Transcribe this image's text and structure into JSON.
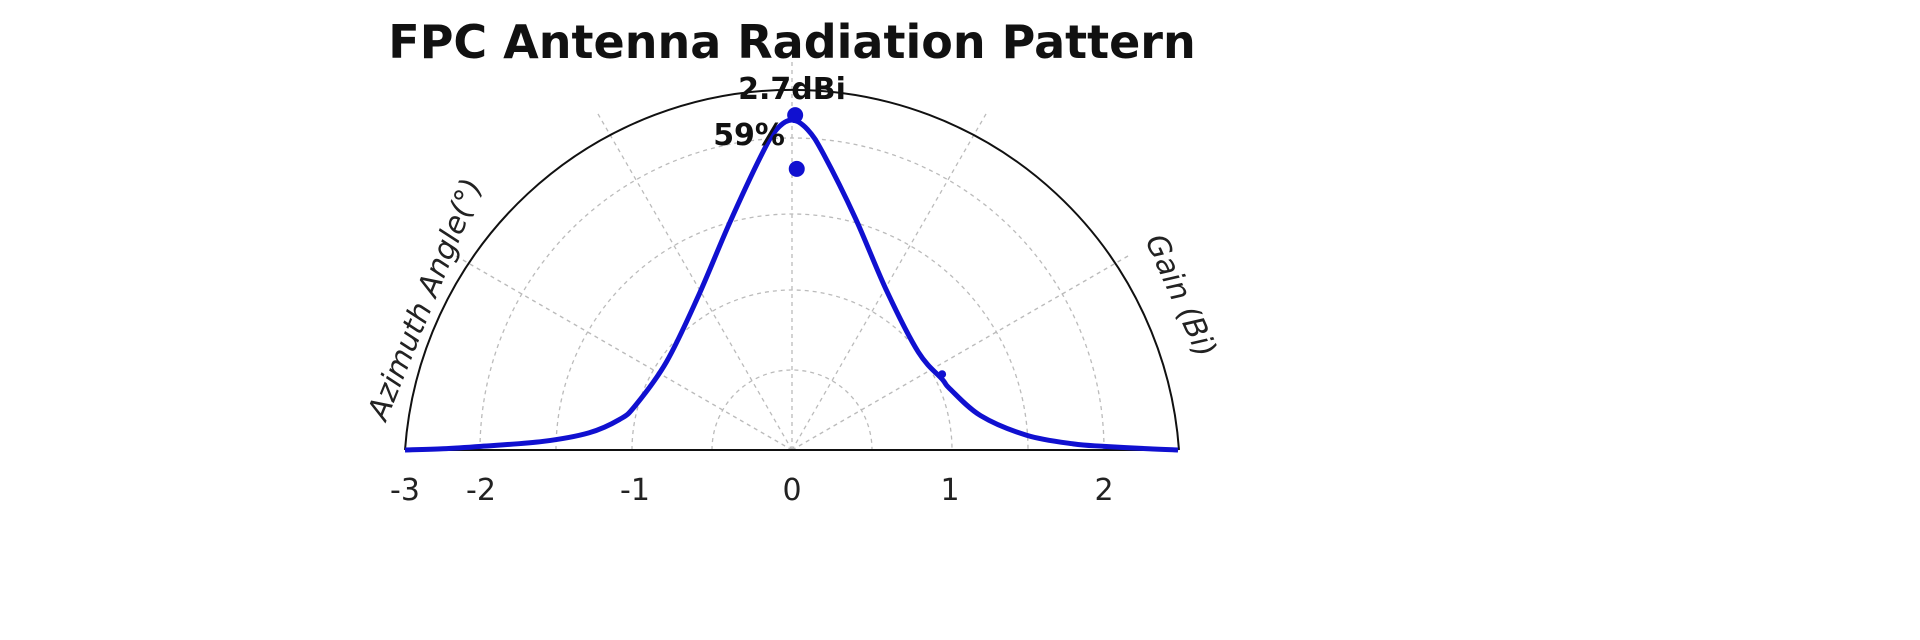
{
  "chart_data": {
    "type": "line",
    "title": "FPC Antenna Radiation Pattern",
    "left_label": "Azimuth Angle(°)",
    "right_label": "Gain (Bi)",
    "x_ticks": [
      "-3",
      "-2",
      "-1",
      "0",
      "1",
      "2"
    ],
    "xlim": [
      -3,
      2.5
    ],
    "polar_grid": true,
    "series_color": "#1010d0",
    "series": [
      {
        "x": [
          -3,
          -2.5,
          -2,
          -1.6,
          -1.3,
          -1.1,
          -1,
          -0.8,
          -0.6,
          -0.4,
          -0.2,
          -0.1,
          0,
          0.1,
          0.2,
          0.4,
          0.6,
          0.8,
          0.95,
          1,
          1.2,
          1.5,
          1.8,
          2,
          2.3,
          2.5
        ],
        "y": [
          0.0,
          0.01,
          0.03,
          0.07,
          0.14,
          0.25,
          0.36,
          0.72,
          1.25,
          1.85,
          2.4,
          2.62,
          2.7,
          2.62,
          2.42,
          1.9,
          1.3,
          0.8,
          0.58,
          0.5,
          0.28,
          0.12,
          0.05,
          0.03,
          0.01,
          0.0
        ]
      }
    ],
    "annotations": [
      {
        "text": "2.7dBi",
        "x": 0,
        "y": 2.74
      },
      {
        "text": "59%",
        "x": 0.03,
        "y": 2.3
      }
    ],
    "markers": [
      {
        "x": 0.02,
        "y": 2.74
      },
      {
        "x": 0.03,
        "y": 2.3
      },
      {
        "x": 0.95,
        "y": 0.62
      }
    ]
  }
}
